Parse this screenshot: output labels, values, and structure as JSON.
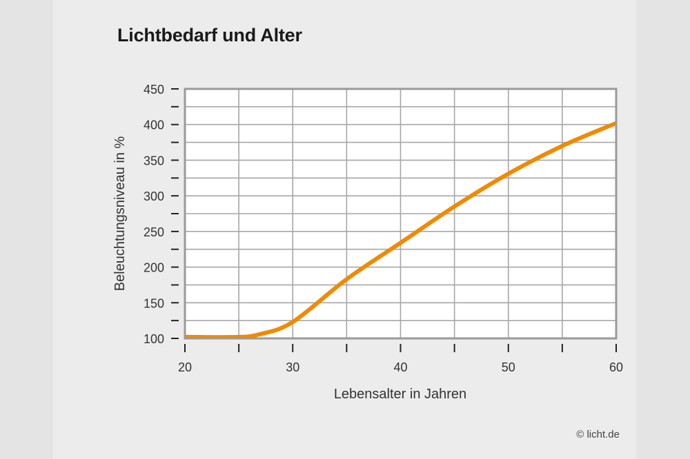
{
  "title": "Lichtbedarf und Alter",
  "copyright": "© licht.de",
  "colors": {
    "line": "#f08a00",
    "grid": "#a6a6a6",
    "frame": "#9a9a9a",
    "plot_background": "#ffffff",
    "page_background": "#ececec"
  },
  "chart_data": {
    "type": "line",
    "title": "Lichtbedarf und Alter",
    "xlabel": "Lebensalter in Jahren",
    "ylabel": "Beleuchtungsniveau in  %",
    "xlim": [
      20,
      60
    ],
    "ylim": [
      100,
      450
    ],
    "x_ticks": [
      20,
      30,
      40,
      50,
      60
    ],
    "x_minor_ticks": [
      25,
      35,
      45,
      55
    ],
    "y_ticks": [
      100,
      150,
      200,
      250,
      300,
      350,
      400,
      450
    ],
    "y_minor_ticks": [
      125,
      175,
      225,
      275,
      325,
      375,
      425
    ],
    "grid": true,
    "legend": null,
    "series": [
      {
        "name": "Beleuchtungsniveau",
        "x": [
          20,
          25,
          27,
          30,
          35,
          40,
          45,
          50,
          55,
          60
        ],
        "values": [
          102,
          102,
          106,
          123,
          183,
          234,
          285,
          331,
          370,
          402
        ]
      }
    ]
  }
}
